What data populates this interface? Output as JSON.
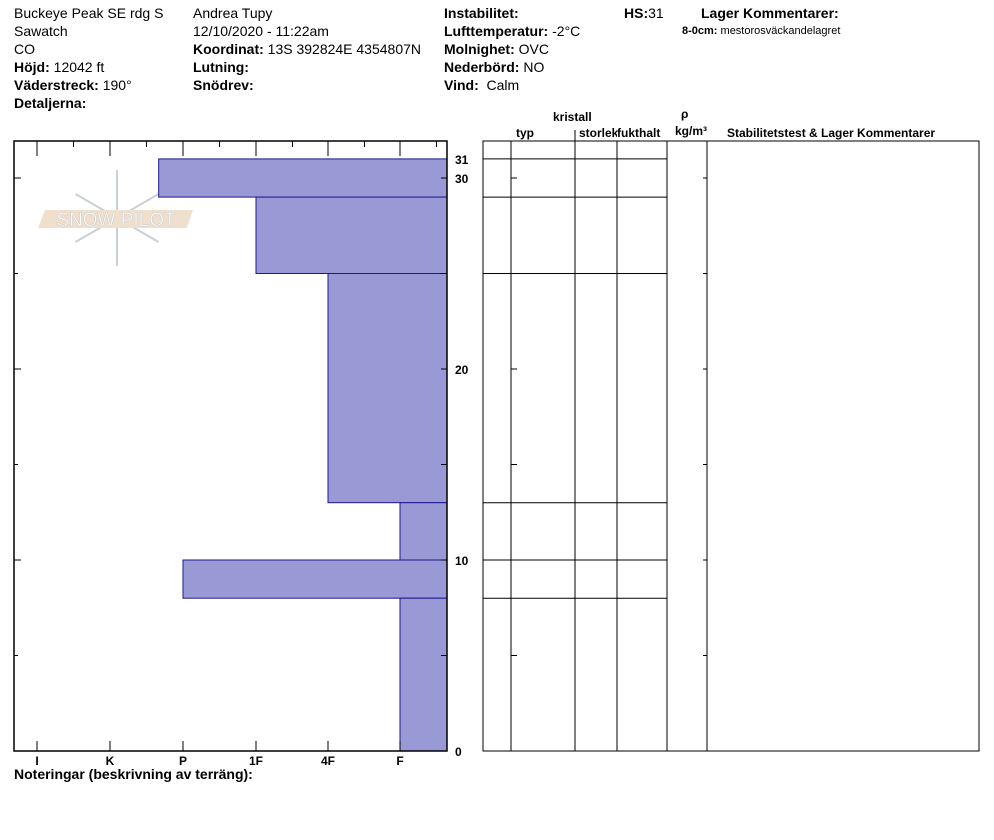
{
  "header": {
    "location": "Buckeye Peak SE rdg S",
    "range": "Sawatch",
    "state": "CO",
    "elevation_label": "Höjd:",
    "elevation": "12042 ft",
    "aspect_label": "Väderstreck:",
    "aspect": "190°",
    "details_label": "Detaljerna:",
    "observer": "Andrea Tupy",
    "datetime": "12/10/2020 - 11:22am",
    "coord_label": "Koordinat:",
    "coord": "13S 392824E 4354807N",
    "slope_label": "Lutning:",
    "drift_label": "Snödrev:",
    "instability_label": "Instabilitet:",
    "airtemp_label": "Lufttemperatur:",
    "airtemp": "-2°C",
    "sky_label": "Molnighet:",
    "sky": "OVC",
    "precip_label": "Nederbörd:",
    "precip": "NO",
    "wind_label": "Vind:",
    "wind": "Calm",
    "hs_label": "HS:",
    "hs": "31",
    "layer_comments_label": "Lager Kommentarer:",
    "layer_comment_range": "8-0cm:",
    "layer_comment": "mestorosväckandelagret"
  },
  "columns": {
    "crystal": "kristall",
    "type": "typ",
    "size": "storlek",
    "moisture": "fukthalt",
    "rho": "ρ",
    "density": "kg/m³",
    "stability": "Stabilitetstest & Lager Kommentarer"
  },
  "notes_label": "Noteringar (beskrivning av terräng):",
  "logo_text": "SNOW PILOT",
  "chart_data": {
    "type": "bar",
    "orientation": "horizontal",
    "xlabel": "",
    "ylabel": "",
    "x_categories": [
      "I",
      "K",
      "P",
      "1F",
      "4F",
      "F"
    ],
    "y_ticks": [
      "0",
      "10",
      "20",
      "30",
      "31"
    ],
    "ylim": [
      0,
      31
    ],
    "layers": [
      {
        "top": 31,
        "bottom": 29,
        "hardness": "P-"
      },
      {
        "top": 29,
        "bottom": 25,
        "hardness": "1F"
      },
      {
        "top": 25,
        "bottom": 13,
        "hardness": "4F"
      },
      {
        "top": 13,
        "bottom": 10,
        "hardness": "F"
      },
      {
        "top": 10,
        "bottom": 8,
        "hardness": "P"
      },
      {
        "top": 8,
        "bottom": 0,
        "hardness": "F"
      }
    ],
    "colors": {
      "fill": "#9999d6",
      "stroke": "#1a1a8c"
    }
  }
}
